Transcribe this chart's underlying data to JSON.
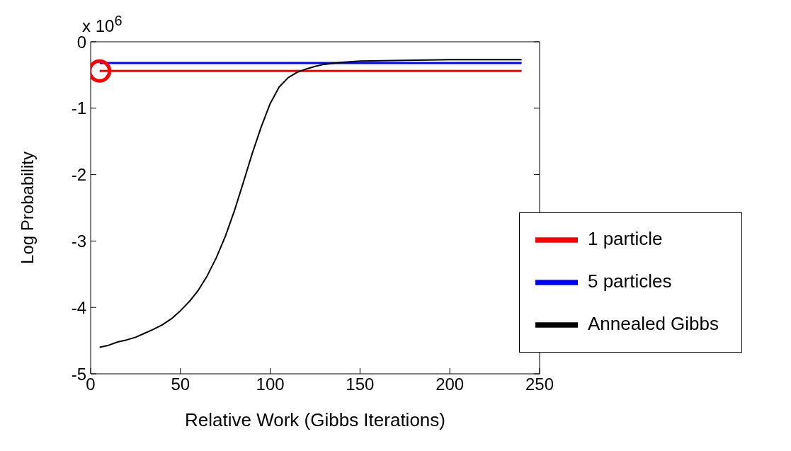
{
  "chart_data": {
    "type": "line",
    "xlabel": "Relative Work (Gibbs Iterations)",
    "ylabel": "Log Probability",
    "annotations": [
      "x 10$^{6}$"
    ],
    "xlim": [
      0,
      250
    ],
    "xticks": [
      0,
      50,
      100,
      150,
      200,
      250
    ],
    "ylim": [
      -5,
      0
    ],
    "yticks": [
      -5,
      -4,
      -3,
      -2,
      -1,
      0
    ],
    "grid": false,
    "legend": "bottom right",
    "line_style": "solid",
    "series": [
      {
        "name": "1 particle",
        "color": "#ff0000",
        "x": [
          5,
          240
        ],
        "values": [
          -0.44,
          -0.44
        ]
      },
      {
        "name": "5 particles",
        "color": "#0000ff",
        "x": [
          5,
          240
        ],
        "values": [
          -0.32,
          -0.32
        ]
      },
      {
        "name": "Annealed Gibbs",
        "color": "#000000",
        "x": [
          5,
          10,
          15,
          20,
          25,
          30,
          35,
          40,
          45,
          50,
          55,
          60,
          65,
          70,
          75,
          80,
          85,
          90,
          95,
          100,
          105,
          110,
          115,
          120,
          125,
          130,
          140,
          150,
          175,
          200,
          240
        ],
        "values": [
          -4.6,
          -4.57,
          -4.52,
          -4.49,
          -4.45,
          -4.39,
          -4.33,
          -4.26,
          -4.17,
          -4.05,
          -3.91,
          -3.74,
          -3.52,
          -3.25,
          -2.93,
          -2.55,
          -2.12,
          -1.68,
          -1.28,
          -0.93,
          -0.68,
          -0.54,
          -0.46,
          -0.41,
          -0.37,
          -0.34,
          -0.31,
          -0.29,
          -0.28,
          -0.27,
          -0.27
        ]
      },
      {
        "type": "scatter",
        "color": "#ff0000",
        "marker": "circle",
        "x": [
          5
        ],
        "values": [
          -0.44
        ]
      }
    ]
  }
}
